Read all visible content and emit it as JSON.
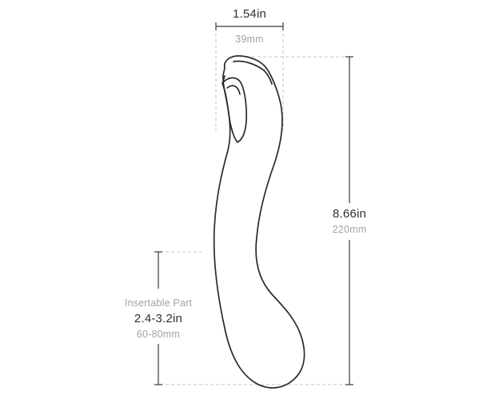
{
  "width_dimension": {
    "imperial": "1.54in",
    "metric": "39mm"
  },
  "length_dimension": {
    "imperial": "8.66in",
    "metric": "220mm"
  },
  "insertable_dimension": {
    "caption": "Insertable Part",
    "imperial": "2.4-3.2in",
    "metric": "60-80mm"
  },
  "colors": {
    "outline": "#2a2a2a",
    "dimension_line": "#3a3a3a",
    "guide_line": "#bfbfbf",
    "primary_text": "#2f2f2f",
    "secondary_text": "#a3a3a3"
  }
}
